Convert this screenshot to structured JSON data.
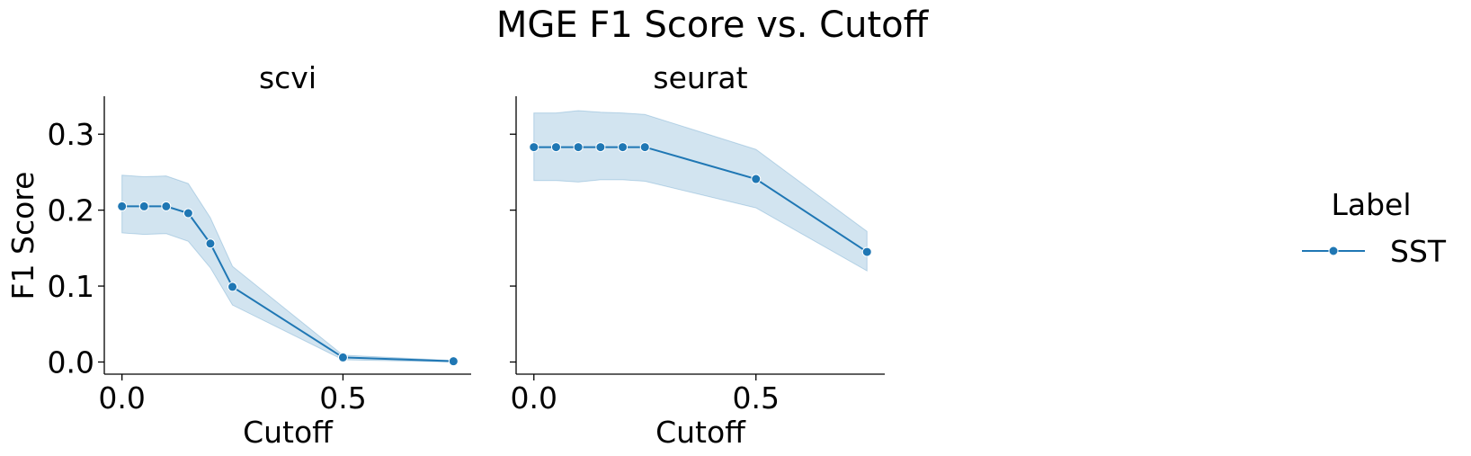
{
  "chart_data": {
    "type": "line",
    "title": "MGE F1 Score vs. Cutoff",
    "ylabel": "F1 Score",
    "ylim": [
      -0.016,
      0.35
    ],
    "yticks": [
      0.0,
      0.1,
      0.2,
      0.3
    ],
    "ytick_labels": [
      "0.0",
      "0.1",
      "0.2",
      "0.3"
    ],
    "legend": {
      "title": "Label",
      "position": "right",
      "entries": [
        "SST"
      ]
    },
    "series_color": "#1f77b4",
    "band_color": "#1f77b4",
    "grid": false,
    "facets": [
      {
        "title": "scvi",
        "xlabel": "Cutoff",
        "xlim": [
          -0.04,
          0.79
        ],
        "xticks": [
          0.0,
          0.5
        ],
        "xtick_labels": [
          "0.0",
          "0.5"
        ],
        "series": [
          {
            "name": "SST",
            "x": [
              0.0,
              0.05,
              0.1,
              0.15,
              0.2,
              0.25,
              0.5,
              0.75
            ],
            "y": [
              0.205,
              0.205,
              0.205,
              0.196,
              0.156,
              0.099,
              0.006,
              0.001
            ],
            "y_low": [
              0.17,
              0.168,
              0.169,
              0.159,
              0.124,
              0.075,
              0.003,
              0.0
            ],
            "y_high": [
              0.246,
              0.244,
              0.245,
              0.235,
              0.19,
              0.126,
              0.009,
              0.002
            ]
          }
        ]
      },
      {
        "title": "seurat",
        "xlabel": "Cutoff",
        "xlim": [
          -0.04,
          0.79
        ],
        "xticks": [
          0.0,
          0.5
        ],
        "xtick_labels": [
          "0.0",
          "0.5"
        ],
        "series": [
          {
            "name": "SST",
            "x": [
              0.0,
              0.05,
              0.1,
              0.15,
              0.2,
              0.25,
              0.5,
              0.75
            ],
            "y": [
              0.283,
              0.283,
              0.283,
              0.283,
              0.283,
              0.283,
              0.241,
              0.145
            ],
            "y_low": [
              0.239,
              0.239,
              0.237,
              0.24,
              0.24,
              0.238,
              0.203,
              0.12
            ],
            "y_high": [
              0.328,
              0.328,
              0.331,
              0.329,
              0.328,
              0.326,
              0.28,
              0.172
            ]
          }
        ]
      }
    ]
  }
}
